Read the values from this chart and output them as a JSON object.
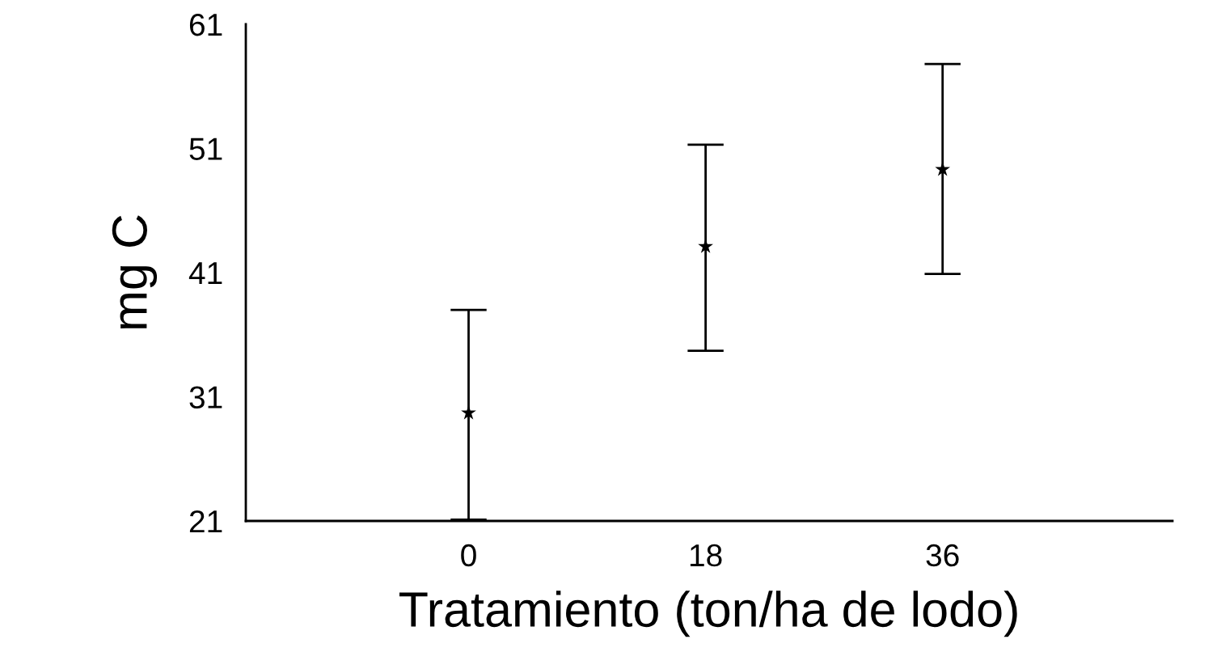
{
  "chart_data": {
    "type": "scatter",
    "xlabel": "Tratamiento (ton/ha de lodo)",
    "ylabel": "mg C",
    "categories": [
      "0",
      "18",
      "36"
    ],
    "values": [
      29.7,
      43.1,
      49.3
    ],
    "errors": [
      [
        21.1,
        38.0
      ],
      [
        34.7,
        51.3
      ],
      [
        40.9,
        57.8
      ]
    ],
    "color": "#000000",
    "marker": "star",
    "ylim": [
      21,
      61
    ],
    "yticks": [
      21,
      31,
      41,
      51,
      61
    ],
    "grid": false,
    "legend": false
  }
}
